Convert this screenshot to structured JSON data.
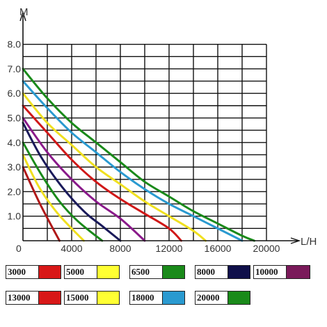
{
  "chart_data": {
    "type": "line",
    "xlabel": "L/H",
    "ylabel": "M",
    "xlim": [
      0,
      22000
    ],
    "ylim": [
      0,
      8.5
    ],
    "xticks": [
      "0",
      "4000",
      "8000",
      "12000",
      "16000",
      "20000"
    ],
    "xtick_values": [
      0,
      4000,
      8000,
      12000,
      16000,
      20000
    ],
    "yticks": [
      "1.0",
      "2.0",
      "3.0",
      "4.0",
      "5.0",
      "6.0",
      "7.0",
      "8.0"
    ],
    "ytick_values": [
      1,
      2,
      3,
      4,
      5,
      6,
      7,
      8
    ],
    "grid": true,
    "series": [
      {
        "name": "3000",
        "color": "#b01818",
        "points": [
          [
            0,
            3.0
          ],
          [
            1400,
            1.5
          ],
          [
            3000,
            0
          ]
        ]
      },
      {
        "name": "5000",
        "color": "#f0e020",
        "points": [
          [
            0,
            3.5
          ],
          [
            1300,
            2.2
          ],
          [
            2700,
            1.2
          ],
          [
            4000,
            0.5
          ],
          [
            5000,
            0
          ]
        ]
      },
      {
        "name": "6500",
        "color": "#1a8a1a",
        "points": [
          [
            0,
            4.0
          ],
          [
            1500,
            2.7
          ],
          [
            3000,
            1.6
          ],
          [
            4500,
            0.8
          ],
          [
            6500,
            0
          ]
        ]
      },
      {
        "name": "8000",
        "color": "#1a1a5a",
        "points": [
          [
            0,
            4.8
          ],
          [
            1500,
            3.4
          ],
          [
            3200,
            2.2
          ],
          [
            5000,
            1.2
          ],
          [
            6500,
            0.6
          ],
          [
            8000,
            0
          ]
        ]
      },
      {
        "name": "10000",
        "color": "#8a1a8a",
        "points": [
          [
            0,
            5.0
          ],
          [
            2000,
            3.6
          ],
          [
            4000,
            2.5
          ],
          [
            6000,
            1.6
          ],
          [
            8000,
            0.9
          ],
          [
            10000,
            0
          ]
        ]
      },
      {
        "name": "13000",
        "color": "#d01818",
        "points": [
          [
            0,
            5.5
          ],
          [
            2000,
            4.4
          ],
          [
            4000,
            3.3
          ],
          [
            6000,
            2.4
          ],
          [
            8000,
            1.7
          ],
          [
            10000,
            1.1
          ],
          [
            12000,
            0.5
          ],
          [
            13000,
            0
          ]
        ]
      },
      {
        "name": "15000",
        "color": "#f0e020",
        "points": [
          [
            0,
            6.0
          ],
          [
            2000,
            4.8
          ],
          [
            4000,
            3.9
          ],
          [
            6000,
            3.0
          ],
          [
            8000,
            2.3
          ],
          [
            10000,
            1.6
          ],
          [
            12000,
            1.0
          ],
          [
            14000,
            0.4
          ],
          [
            15000,
            0
          ]
        ]
      },
      {
        "name": "18000",
        "color": "#2a9ad0",
        "points": [
          [
            0,
            6.5
          ],
          [
            2000,
            5.4
          ],
          [
            4000,
            4.4
          ],
          [
            6000,
            3.6
          ],
          [
            8000,
            2.8
          ],
          [
            10000,
            2.1
          ],
          [
            12000,
            1.5
          ],
          [
            14000,
            1.0
          ],
          [
            16000,
            0.5
          ],
          [
            18000,
            0
          ]
        ]
      },
      {
        "name": "20000",
        "color": "#1a8a1a",
        "points": [
          [
            0,
            7.0
          ],
          [
            2000,
            5.8
          ],
          [
            4000,
            4.8
          ],
          [
            6000,
            4.0
          ],
          [
            8000,
            3.2
          ],
          [
            10000,
            2.4
          ],
          [
            12000,
            1.8
          ],
          [
            14000,
            1.2
          ],
          [
            16000,
            0.7
          ],
          [
            18000,
            0.2
          ],
          [
            19000,
            0
          ]
        ]
      }
    ]
  },
  "legend": [
    {
      "label": "3000",
      "color": "#d81818"
    },
    {
      "label": "5000",
      "color": "#ffff33"
    },
    {
      "label": "6500",
      "color": "#1a8a1a"
    },
    {
      "label": "8000",
      "color": "#10104a"
    },
    {
      "label": "10000",
      "color": "#7a1a5a"
    },
    {
      "label": "13000",
      "color": "#d81818"
    },
    {
      "label": "15000",
      "color": "#ffff33"
    },
    {
      "label": "18000",
      "color": "#2a9ad0"
    },
    {
      "label": "20000",
      "color": "#1a8a1a"
    }
  ]
}
